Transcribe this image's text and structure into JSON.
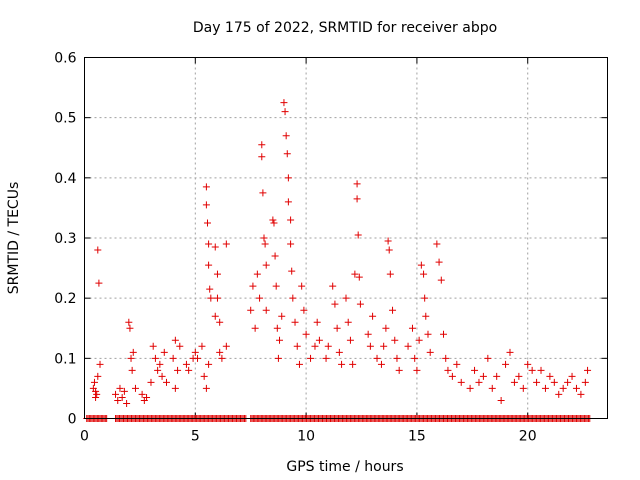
{
  "chart_data": {
    "type": "scatter",
    "title": "Day 175 of 2022, SRMTID for receiver abpo",
    "xlabel": "GPS time / hours",
    "ylabel": "SRMTID / TECUs",
    "xlim": [
      0,
      23.6
    ],
    "ylim": [
      0,
      0.6
    ],
    "xticks": [
      0,
      5,
      10,
      15,
      20
    ],
    "yticks": [
      0,
      0.1,
      0.2,
      0.3,
      0.4,
      0.5,
      0.6
    ],
    "xtick_labels": [
      "0",
      "5",
      "10",
      "15",
      "20"
    ],
    "ytick_labels": [
      "0",
      "0.1",
      "0.2",
      "0.3",
      "0.4",
      "0.5",
      "0.6"
    ],
    "grid": true,
    "marker": "+",
    "color": "#e00000",
    "series": [
      {
        "name": "SRMTID",
        "points": [
          [
            0.4,
            0.05
          ],
          [
            0.45,
            0.06
          ],
          [
            0.5,
            0.045
          ],
          [
            0.55,
            0.04
          ],
          [
            0.6,
            0.07
          ],
          [
            0.6,
            0.28
          ],
          [
            0.65,
            0.225
          ],
          [
            0.7,
            0.09
          ],
          [
            0.5,
            0.035
          ],
          [
            1.4,
            0.04
          ],
          [
            1.5,
            0.03
          ],
          [
            1.6,
            0.05
          ],
          [
            1.7,
            0.035
          ],
          [
            1.8,
            0.045
          ],
          [
            1.9,
            0.025
          ],
          [
            2.0,
            0.16
          ],
          [
            2.05,
            0.15
          ],
          [
            2.1,
            0.1
          ],
          [
            2.15,
            0.08
          ],
          [
            2.2,
            0.11
          ],
          [
            2.3,
            0.05
          ],
          [
            2.6,
            0.04
          ],
          [
            2.7,
            0.03
          ],
          [
            2.8,
            0.035
          ],
          [
            3.0,
            0.06
          ],
          [
            3.1,
            0.12
          ],
          [
            3.2,
            0.1
          ],
          [
            3.3,
            0.08
          ],
          [
            3.4,
            0.09
          ],
          [
            3.5,
            0.07
          ],
          [
            3.6,
            0.11
          ],
          [
            3.7,
            0.06
          ],
          [
            4.0,
            0.1
          ],
          [
            4.1,
            0.13
          ],
          [
            4.2,
            0.08
          ],
          [
            4.3,
            0.12
          ],
          [
            4.1,
            0.05
          ],
          [
            4.6,
            0.09
          ],
          [
            4.7,
            0.08
          ],
          [
            4.9,
            0.1
          ],
          [
            5.0,
            0.11
          ],
          [
            5.1,
            0.1
          ],
          [
            5.3,
            0.12
          ],
          [
            5.4,
            0.07
          ],
          [
            5.5,
            0.385
          ],
          [
            5.5,
            0.355
          ],
          [
            5.55,
            0.325
          ],
          [
            5.6,
            0.29
          ],
          [
            5.6,
            0.255
          ],
          [
            5.65,
            0.215
          ],
          [
            5.7,
            0.2
          ],
          [
            5.5,
            0.05
          ],
          [
            5.6,
            0.09
          ],
          [
            5.9,
            0.285
          ],
          [
            6.0,
            0.24
          ],
          [
            6.0,
            0.2
          ],
          [
            6.1,
            0.16
          ],
          [
            6.1,
            0.11
          ],
          [
            5.9,
            0.17
          ],
          [
            6.2,
            0.1
          ],
          [
            6.4,
            0.29
          ],
          [
            6.4,
            0.12
          ],
          [
            7.5,
            0.18
          ],
          [
            7.6,
            0.22
          ],
          [
            7.7,
            0.15
          ],
          [
            7.8,
            0.24
          ],
          [
            7.9,
            0.2
          ],
          [
            8.0,
            0.455
          ],
          [
            8.0,
            0.435
          ],
          [
            8.05,
            0.375
          ],
          [
            8.1,
            0.3
          ],
          [
            8.15,
            0.29
          ],
          [
            8.2,
            0.255
          ],
          [
            8.2,
            0.18
          ],
          [
            8.5,
            0.33
          ],
          [
            8.55,
            0.325
          ],
          [
            8.6,
            0.27
          ],
          [
            8.65,
            0.22
          ],
          [
            8.7,
            0.15
          ],
          [
            8.75,
            0.1
          ],
          [
            8.8,
            0.13
          ],
          [
            8.9,
            0.17
          ],
          [
            9.0,
            0.525
          ],
          [
            9.05,
            0.51
          ],
          [
            9.1,
            0.47
          ],
          [
            9.15,
            0.44
          ],
          [
            9.2,
            0.4
          ],
          [
            9.2,
            0.36
          ],
          [
            9.3,
            0.33
          ],
          [
            9.3,
            0.29
          ],
          [
            9.35,
            0.245
          ],
          [
            9.4,
            0.2
          ],
          [
            9.5,
            0.16
          ],
          [
            9.6,
            0.12
          ],
          [
            9.7,
            0.09
          ],
          [
            9.8,
            0.22
          ],
          [
            9.9,
            0.18
          ],
          [
            10.0,
            0.14
          ],
          [
            10.2,
            0.1
          ],
          [
            10.4,
            0.12
          ],
          [
            10.5,
            0.16
          ],
          [
            10.6,
            0.13
          ],
          [
            10.9,
            0.1
          ],
          [
            11.0,
            0.12
          ],
          [
            11.2,
            0.22
          ],
          [
            11.3,
            0.19
          ],
          [
            11.4,
            0.15
          ],
          [
            11.5,
            0.11
          ],
          [
            11.6,
            0.09
          ],
          [
            11.8,
            0.2
          ],
          [
            11.9,
            0.16
          ],
          [
            12.0,
            0.13
          ],
          [
            12.1,
            0.09
          ],
          [
            12.2,
            0.24
          ],
          [
            12.3,
            0.39
          ],
          [
            12.3,
            0.365
          ],
          [
            12.35,
            0.305
          ],
          [
            12.4,
            0.235
          ],
          [
            12.45,
            0.19
          ],
          [
            12.8,
            0.14
          ],
          [
            12.9,
            0.12
          ],
          [
            13.0,
            0.17
          ],
          [
            13.2,
            0.1
          ],
          [
            13.4,
            0.09
          ],
          [
            13.5,
            0.12
          ],
          [
            13.6,
            0.15
          ],
          [
            13.7,
            0.295
          ],
          [
            13.75,
            0.28
          ],
          [
            13.8,
            0.24
          ],
          [
            13.9,
            0.18
          ],
          [
            14.0,
            0.13
          ],
          [
            14.1,
            0.1
          ],
          [
            14.2,
            0.08
          ],
          [
            14.6,
            0.12
          ],
          [
            14.8,
            0.15
          ],
          [
            14.9,
            0.1
          ],
          [
            15.0,
            0.08
          ],
          [
            15.1,
            0.13
          ],
          [
            15.2,
            0.255
          ],
          [
            15.3,
            0.24
          ],
          [
            15.35,
            0.2
          ],
          [
            15.4,
            0.17
          ],
          [
            15.5,
            0.14
          ],
          [
            15.6,
            0.11
          ],
          [
            15.9,
            0.29
          ],
          [
            16.0,
            0.26
          ],
          [
            16.1,
            0.23
          ],
          [
            16.2,
            0.14
          ],
          [
            16.3,
            0.1
          ],
          [
            16.4,
            0.08
          ],
          [
            16.6,
            0.07
          ],
          [
            16.8,
            0.09
          ],
          [
            17.0,
            0.06
          ],
          [
            17.4,
            0.05
          ],
          [
            17.6,
            0.08
          ],
          [
            17.8,
            0.06
          ],
          [
            18.0,
            0.07
          ],
          [
            18.2,
            0.1
          ],
          [
            18.4,
            0.05
          ],
          [
            18.6,
            0.07
          ],
          [
            18.8,
            0.03
          ],
          [
            19.0,
            0.09
          ],
          [
            19.2,
            0.11
          ],
          [
            19.4,
            0.06
          ],
          [
            19.6,
            0.07
          ],
          [
            19.8,
            0.05
          ],
          [
            20.0,
            0.09
          ],
          [
            20.2,
            0.08
          ],
          [
            20.4,
            0.06
          ],
          [
            20.6,
            0.08
          ],
          [
            20.8,
            0.05
          ],
          [
            21.0,
            0.07
          ],
          [
            21.2,
            0.06
          ],
          [
            21.4,
            0.04
          ],
          [
            21.6,
            0.05
          ],
          [
            21.8,
            0.06
          ],
          [
            22.0,
            0.07
          ],
          [
            22.2,
            0.05
          ],
          [
            22.4,
            0.04
          ],
          [
            22.6,
            0.06
          ],
          [
            22.7,
            0.08
          ]
        ]
      }
    ],
    "zero_band": [
      [
        0.1,
        1.0
      ],
      [
        1.4,
        7.3
      ],
      [
        7.5,
        22.8
      ]
    ]
  }
}
